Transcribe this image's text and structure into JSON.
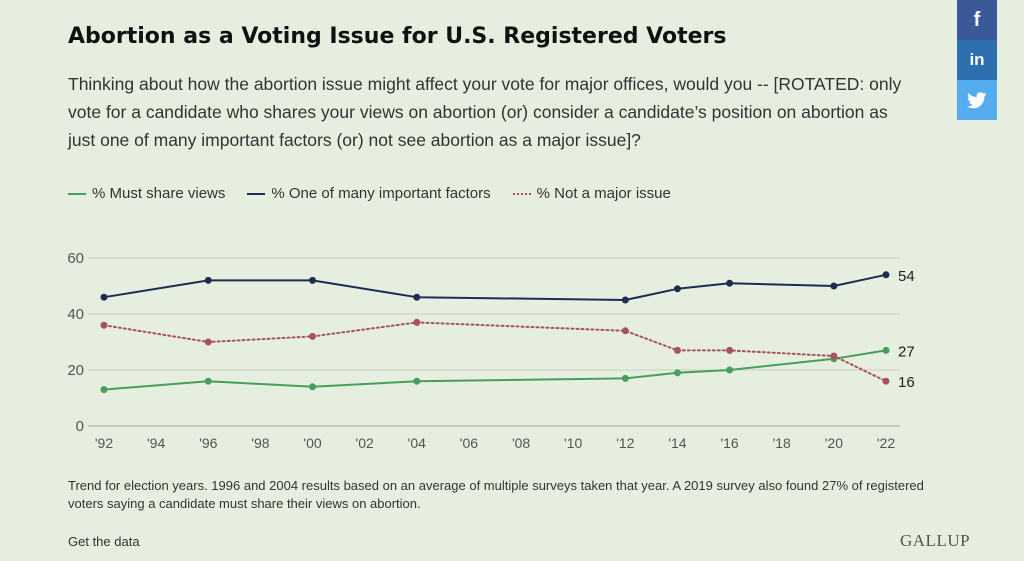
{
  "title": "Abortion as a Voting Issue for U.S. Registered Voters",
  "subtitle": "Thinking about how the abortion issue might affect your vote for major offices, would you -- [ROTATED: only vote for a candidate who shares your views on abortion (or) consider a candidate’s position on abortion as just one of many important factors (or) not see abortion as a major issue]?",
  "footnote": "Trend for election years. 1996 and 2004 results based on an average of multiple surveys taken that year. A 2019 survey also found 27% of registered voters saying a candidate must share their views on abortion.",
  "get_data_label": "Get the data",
  "logo_text": "GALLUP",
  "share": {
    "facebook_icon": "f",
    "linkedin_icon": "in",
    "twitter_icon": "twitter-bird"
  },
  "colors": {
    "must_share": "#4a9e5c",
    "one_of_many": "#1f2d52",
    "not_major": "#a9525e",
    "grid": "#c9d2c2",
    "axis_text": "#555555"
  },
  "chart_data": {
    "type": "line",
    "x_ticks": [
      "'92",
      "'94",
      "'96",
      "'98",
      "'00",
      "'02",
      "'04",
      "'06",
      "'08",
      "'10",
      "'12",
      "'14",
      "'16",
      "'18",
      "'20",
      "'22"
    ],
    "x_range": [
      1992,
      2022
    ],
    "y_ticks": [
      0,
      20,
      40,
      60
    ],
    "ylim": [
      0,
      60
    ],
    "grid": true,
    "legend_position": "top-left",
    "series": [
      {
        "name": "% Must share views",
        "style": "solid",
        "x": [
          1992,
          1996,
          2000,
          2004,
          2012,
          2014,
          2016,
          2020,
          2022
        ],
        "values": [
          13,
          16,
          14,
          16,
          17,
          19,
          20,
          24,
          27
        ],
        "end_label": "27"
      },
      {
        "name": "% One of many important factors",
        "style": "solid",
        "x": [
          1992,
          1996,
          2000,
          2004,
          2012,
          2014,
          2016,
          2020,
          2022
        ],
        "values": [
          46,
          52,
          52,
          46,
          45,
          49,
          51,
          50,
          54
        ],
        "end_label": "54"
      },
      {
        "name": "% Not a major issue",
        "style": "dotted",
        "x": [
          1992,
          1996,
          2000,
          2004,
          2012,
          2014,
          2016,
          2020,
          2022
        ],
        "values": [
          36,
          30,
          32,
          37,
          34,
          27,
          27,
          25,
          16
        ],
        "end_label": "16"
      }
    ]
  }
}
